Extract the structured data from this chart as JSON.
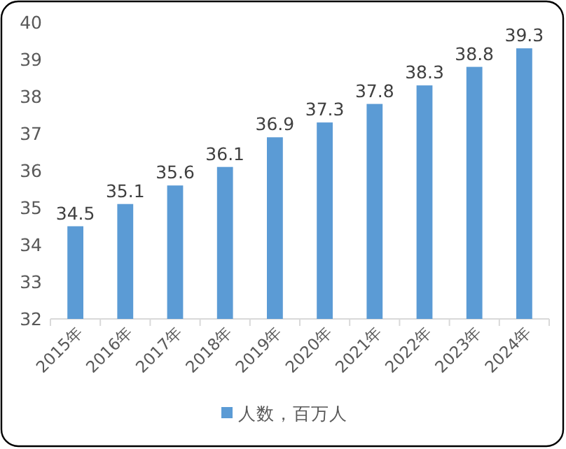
{
  "chart_data": {
    "type": "bar",
    "categories": [
      "2015年",
      "2016年",
      "2017年",
      "2018年",
      "2019年",
      "2020年",
      "2021年",
      "2022年",
      "2023年",
      "2024年"
    ],
    "series": [
      {
        "name": "人数，百万人",
        "color": "#5b9bd5",
        "values": [
          34.5,
          35.1,
          35.6,
          36.1,
          36.9,
          37.3,
          37.8,
          38.3,
          38.8,
          39.3
        ]
      }
    ],
    "ylim": [
      32,
      40
    ],
    "yticks": [
      32,
      33,
      34,
      35,
      36,
      37,
      38,
      39,
      40
    ],
    "data_labels": true,
    "grid": false,
    "legend": "bottom"
  }
}
